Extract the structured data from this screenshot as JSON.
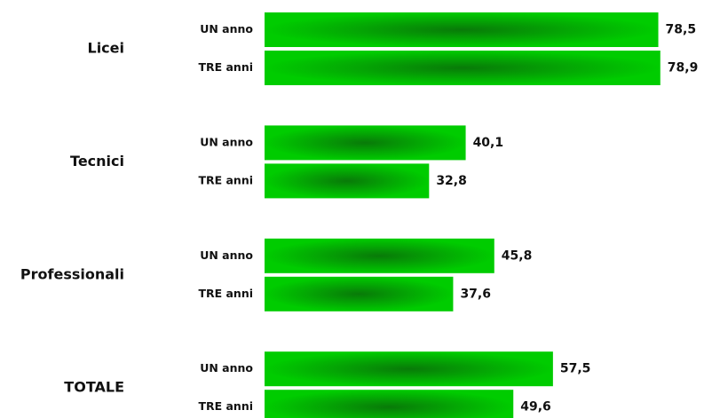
{
  "chart_data": {
    "type": "bar",
    "orientation": "horizontal",
    "categories": [
      "Licei",
      "Tecnici",
      "Professionali",
      "TOTALE"
    ],
    "series": [
      {
        "name": "UN anno",
        "color": "#00cc00",
        "values": [
          78.5,
          40.1,
          45.8,
          57.5
        ],
        "value_labels": [
          "78,5",
          "40,1",
          "45,8",
          "57,5"
        ]
      },
      {
        "name": "TRE anni",
        "color": "#00cc00",
        "values": [
          78.9,
          32.8,
          37.6,
          49.6
        ],
        "value_labels": [
          "78,9",
          "32,8",
          "37,6",
          "49,6"
        ]
      }
    ]
  }
}
